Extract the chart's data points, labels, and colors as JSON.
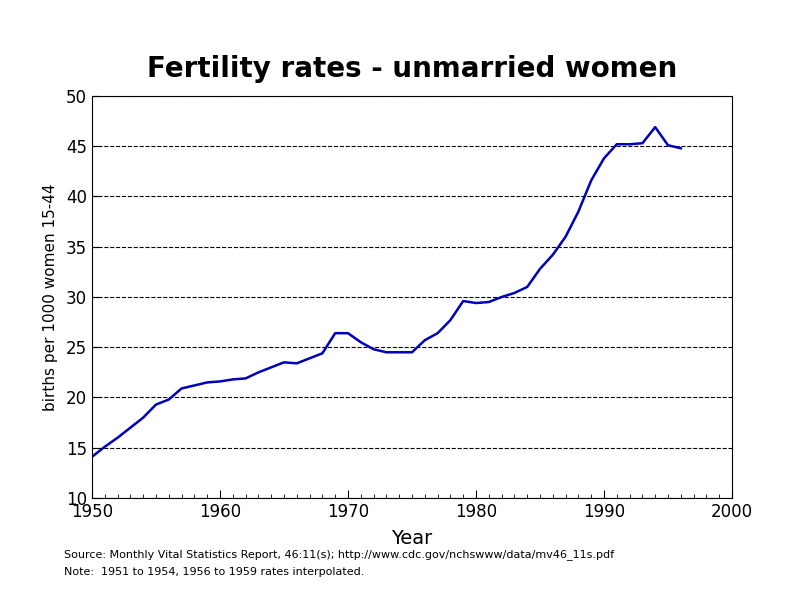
{
  "title": "Fertility rates - unmarried women",
  "xlabel": "Year",
  "ylabel": "births per 1000 women 15-44",
  "xlim": [
    1950,
    2000
  ],
  "ylim": [
    10,
    50
  ],
  "yticks": [
    10,
    15,
    20,
    25,
    30,
    35,
    40,
    45,
    50
  ],
  "xticks_major": [
    1950,
    1960,
    1970,
    1980,
    1990,
    2000
  ],
  "line_color": "#0000BB",
  "line_width": 1.8,
  "source_line1": "Source: Monthly Vital Statistics Report, 46:11(s); http://www.cdc.gov/nchswww/data/mv46_11s.pdf",
  "source_line2": "Note:  1951 to 1954, 1956 to 1959 rates interpolated.",
  "years": [
    1950,
    1951,
    1952,
    1953,
    1954,
    1955,
    1956,
    1957,
    1958,
    1959,
    1960,
    1961,
    1962,
    1963,
    1964,
    1965,
    1966,
    1967,
    1968,
    1969,
    1970,
    1971,
    1972,
    1973,
    1974,
    1975,
    1976,
    1977,
    1978,
    1979,
    1980,
    1981,
    1982,
    1983,
    1984,
    1985,
    1986,
    1987,
    1988,
    1989,
    1990,
    1991,
    1992,
    1993,
    1994,
    1995,
    1996
  ],
  "values": [
    14.1,
    15.1,
    16.0,
    17.0,
    18.0,
    19.3,
    19.8,
    20.9,
    21.2,
    21.5,
    21.6,
    21.8,
    21.9,
    22.5,
    23.0,
    23.5,
    23.4,
    23.9,
    24.4,
    26.4,
    26.4,
    25.5,
    24.8,
    24.5,
    24.5,
    24.5,
    25.7,
    26.4,
    27.7,
    29.6,
    29.4,
    29.5,
    30.0,
    30.4,
    31.0,
    32.8,
    34.2,
    36.0,
    38.5,
    41.6,
    43.8,
    45.2,
    45.2,
    45.3,
    46.9,
    45.1,
    44.8
  ]
}
